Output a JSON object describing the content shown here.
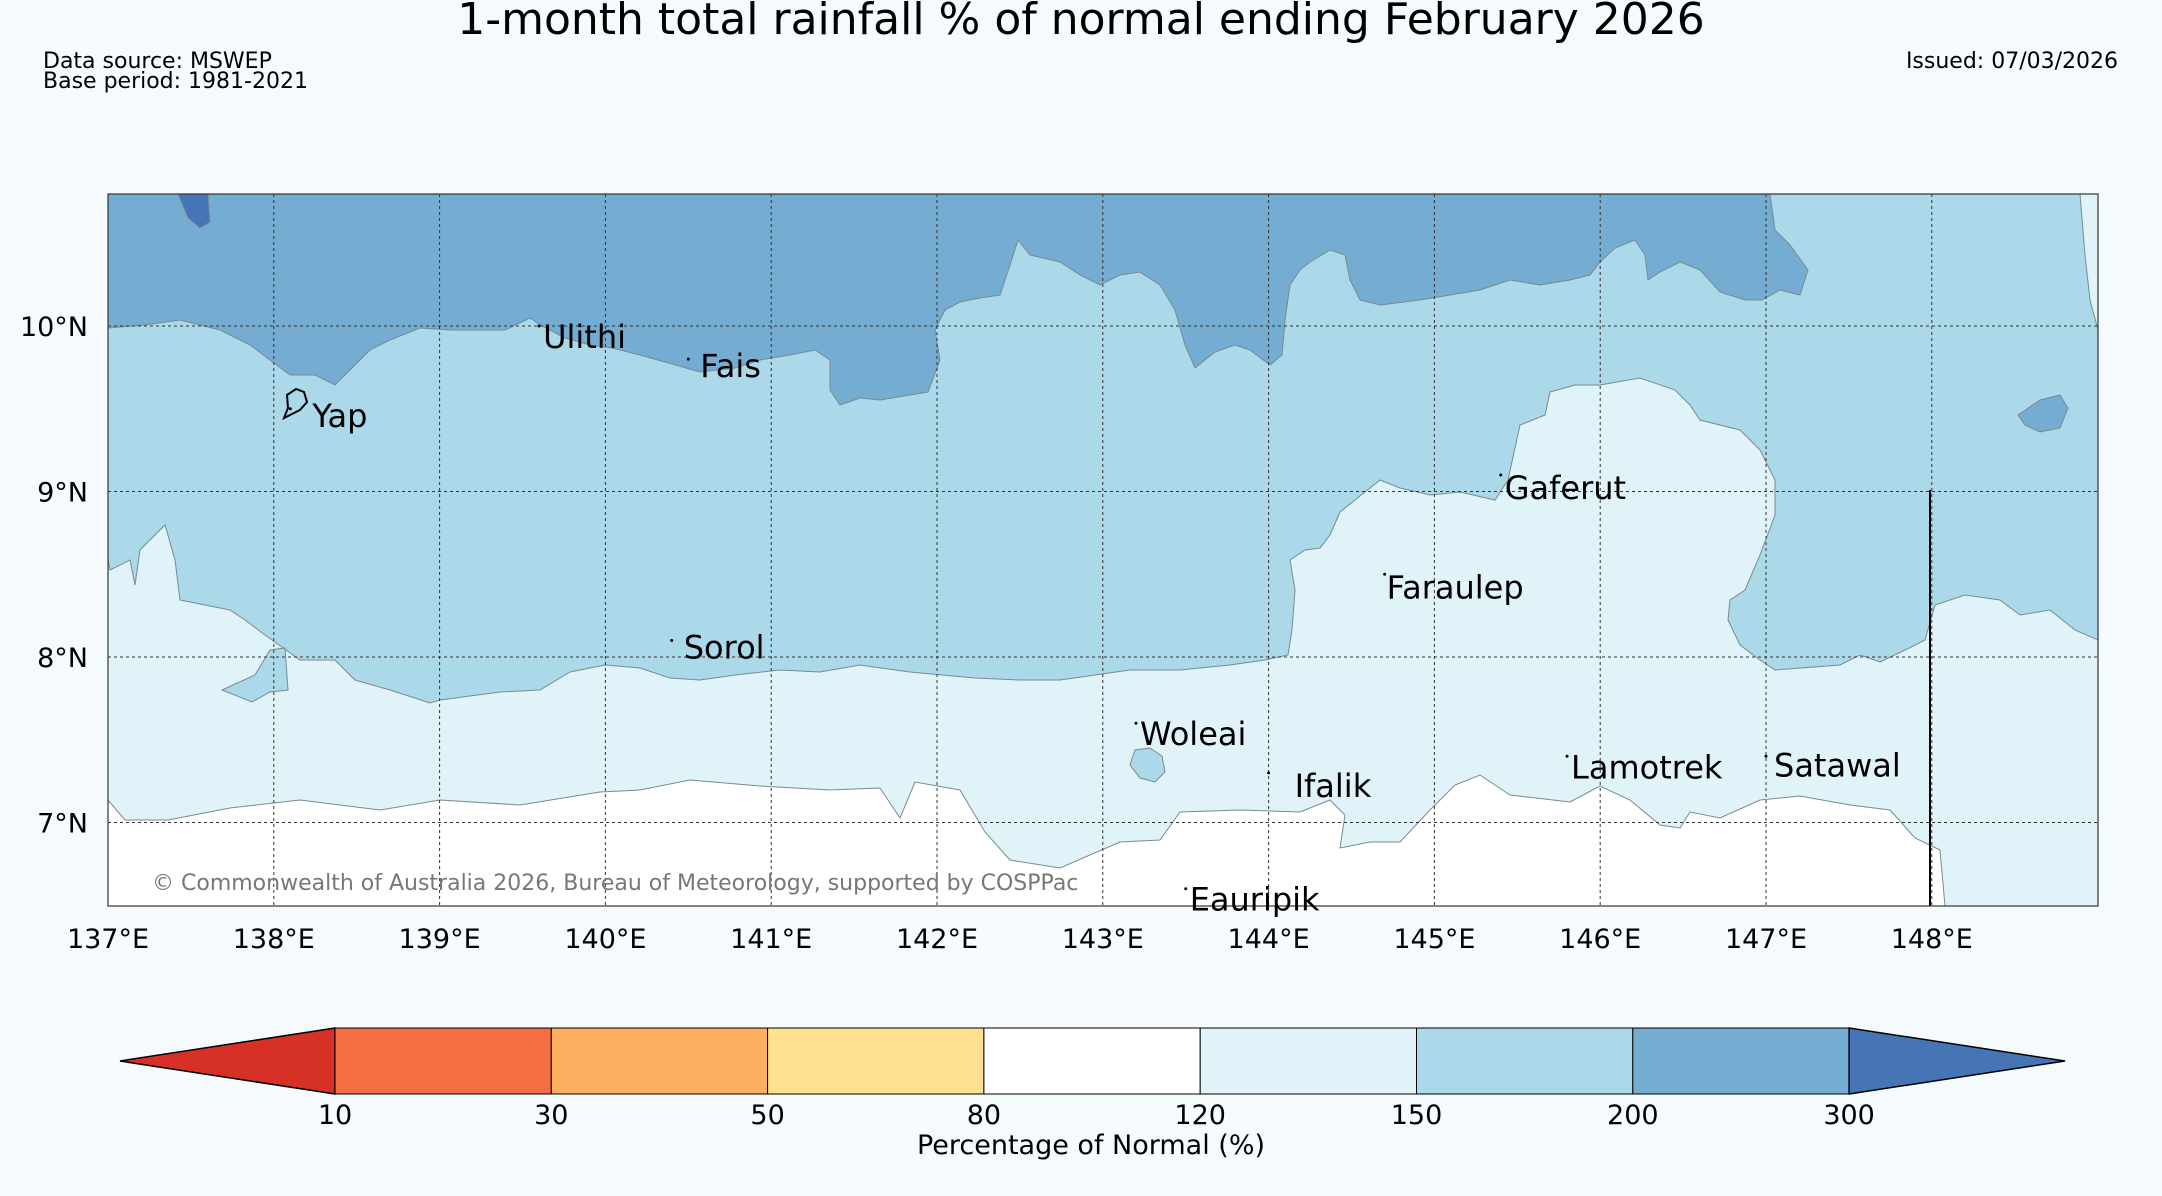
{
  "title": "1-month total rainfall % of normal ending February 2026",
  "data_source": "Data source: MSWEP",
  "base_period": "Base period: 1981-2021",
  "issued": "Issued: 07/03/2026",
  "copyright": "© Commonwealth of Australia 2026, Bureau of Meteorology, supported by COSPPac",
  "axes": {
    "lon_labels": [
      "137°E",
      "138°E",
      "139°E",
      "140°E",
      "141°E",
      "142°E",
      "143°E",
      "144°E",
      "145°E",
      "146°E",
      "147°E",
      "148°E"
    ],
    "lat_labels": [
      "10°N",
      "9°N",
      "8°N",
      "7°N"
    ]
  },
  "places": [
    "Ulithi",
    "Fais",
    "Yap",
    "Gaferut",
    "Faraulep",
    "Sorol",
    "Woleai",
    "Ifalik",
    "Lamotrek",
    "Satawal",
    "Eauripik"
  ],
  "colorbar": {
    "label": "Percentage of Normal (%)",
    "ticks": [
      "10",
      "30",
      "50",
      "80",
      "120",
      "150",
      "200",
      "300"
    ],
    "colors": [
      "#d73027",
      "#f46d43",
      "#fdae61",
      "#fee090",
      "#ffffff",
      "#e0f3f8",
      "#abd9e9",
      "#74add1",
      "#4575b4"
    ]
  },
  "chart_data": {
    "type": "heatmap",
    "title": "1-month total rainfall % of normal ending February 2026",
    "xlim": [
      137,
      149
    ],
    "ylim": [
      6.5,
      10.8
    ],
    "bins": [
      10,
      30,
      50,
      80,
      120,
      150,
      200,
      300
    ],
    "places": [
      {
        "name": "Ulithi",
        "lon": 139.6,
        "lat": 10.0
      },
      {
        "name": "Fais",
        "lon": 140.5,
        "lat": 9.8
      },
      {
        "name": "Yap",
        "lon": 138.1,
        "lat": 9.5
      },
      {
        "name": "Gaferut",
        "lon": 145.4,
        "lat": 9.1
      },
      {
        "name": "Faraulep",
        "lon": 144.7,
        "lat": 8.5
      },
      {
        "name": "Sorol",
        "lon": 140.4,
        "lat": 8.1
      },
      {
        "name": "Woleai",
        "lon": 143.2,
        "lat": 7.6
      },
      {
        "name": "Ifalik",
        "lon": 144.0,
        "lat": 7.3
      },
      {
        "name": "Lamotrek",
        "lon": 145.8,
        "lat": 7.4
      },
      {
        "name": "Satawal",
        "lon": 147.0,
        "lat": 7.4
      },
      {
        "name": "Eauripik",
        "lon": 143.5,
        "lat": 6.6
      }
    ]
  }
}
